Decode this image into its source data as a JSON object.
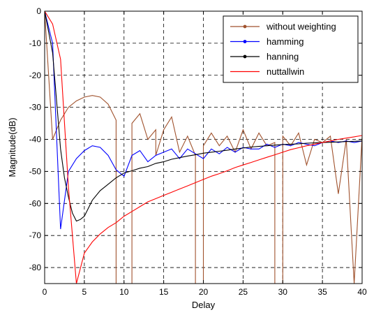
{
  "chart_data": {
    "type": "line",
    "xlabel": "Delay",
    "ylabel": "Magnitude(dB)",
    "xlim": [
      0,
      40
    ],
    "ylim": [
      -85,
      0
    ],
    "xticks": [
      0,
      5,
      10,
      15,
      20,
      25,
      30,
      35,
      40
    ],
    "yticks": [
      0,
      -10,
      -20,
      -30,
      -40,
      -50,
      -60,
      -70,
      -80
    ],
    "grid": true,
    "legend_position": "top-right",
    "series": [
      {
        "name": "without weighting",
        "color": "#a0522d",
        "x": [
          0,
          1,
          2,
          3,
          4,
          5,
          6,
          7,
          8,
          9,
          9,
          10,
          10,
          11,
          11,
          12,
          13,
          14,
          14,
          15,
          16,
          17,
          18,
          19,
          19,
          20,
          20,
          21,
          22,
          23,
          24,
          25,
          26,
          27,
          28,
          29,
          29,
          30,
          30,
          31,
          32,
          33,
          34,
          35,
          36,
          37,
          38,
          39,
          40
        ],
        "y": [
          0,
          -40,
          -34,
          -30,
          -28,
          -26.8,
          -26.3,
          -26.8,
          -29,
          -34,
          -85,
          -85,
          -85,
          -85,
          -35,
          -32,
          -40,
          -37,
          -45,
          -37,
          -33,
          -44,
          -39,
          -45,
          -85,
          -85,
          -42,
          -38,
          -42,
          -39,
          -44,
          -37,
          -43,
          -38,
          -42,
          -41,
          -85,
          -85,
          -39,
          -42,
          -38,
          -48,
          -40,
          -41,
          -39,
          -57,
          -40,
          -85,
          -39
        ]
      },
      {
        "name": "hamming",
        "color": "#0000ff",
        "x": [
          0,
          1,
          2,
          3,
          4,
          5,
          6,
          7,
          8,
          9,
          10,
          11,
          12,
          13,
          14,
          15,
          16,
          17,
          18,
          19,
          20,
          21,
          22,
          23,
          24,
          25,
          26,
          27,
          28,
          29,
          30,
          31,
          32,
          33,
          34,
          35,
          36,
          37,
          38,
          39,
          40
        ],
        "y": [
          0,
          -10,
          -68,
          -50,
          -46,
          -43.5,
          -42,
          -42.5,
          -45,
          -49.5,
          -51.5,
          -45,
          -43.5,
          -47,
          -45,
          -44,
          -43,
          -46,
          -43,
          -44.5,
          -46,
          -43,
          -44.5,
          -42.5,
          -44,
          -42.5,
          -43,
          -43,
          -41.5,
          -42.5,
          -41.5,
          -42,
          -41,
          -41.5,
          -42,
          -41,
          -40.5,
          -41,
          -40.5,
          -41,
          -40.5
        ]
      },
      {
        "name": "hanning",
        "color": "#000000",
        "x": [
          0,
          1,
          1.5,
          2,
          2.5,
          3,
          3.5,
          4,
          4.5,
          5,
          6,
          7,
          8,
          9,
          10,
          11,
          12,
          13,
          14,
          15,
          16,
          17,
          18,
          19,
          20,
          21,
          22,
          23,
          24,
          25,
          26,
          27,
          28,
          29,
          30,
          31,
          32,
          33,
          34,
          35,
          36,
          37,
          38,
          39,
          40
        ],
        "y": [
          0,
          -13,
          -28,
          -43,
          -52,
          -58,
          -63,
          -65.5,
          -65,
          -64,
          -59,
          -56,
          -54,
          -52,
          -50.5,
          -49.8,
          -49,
          -48.5,
          -47.5,
          -47,
          -46.2,
          -45.7,
          -45.2,
          -44.8,
          -44.3,
          -44,
          -43.7,
          -43.4,
          -43,
          -42.7,
          -42.4,
          -42.2,
          -42,
          -41.8,
          -41.6,
          -41.5,
          -41.4,
          -41.2,
          -41.1,
          -41,
          -40.9,
          -40.8,
          -40.7,
          -40.6,
          -40.5
        ]
      },
      {
        "name": "nuttallwin",
        "color": "#ff0000",
        "x": [
          0,
          1,
          2,
          3,
          4,
          5,
          6,
          7,
          8,
          9,
          10,
          11,
          12,
          13,
          14,
          15,
          16,
          17,
          18,
          19,
          20,
          21,
          22,
          23,
          24,
          25,
          26,
          27,
          28,
          29,
          30,
          31,
          32,
          33,
          34,
          35,
          36,
          37,
          38,
          39,
          40
        ],
        "y": [
          0,
          -4,
          -15,
          -55,
          -85,
          -75.5,
          -72,
          -69.5,
          -67.5,
          -66,
          -64,
          -62.5,
          -61,
          -59.5,
          -58.5,
          -57.5,
          -56.5,
          -55.5,
          -54.5,
          -53.5,
          -52.5,
          -51.5,
          -50.7,
          -49.8,
          -48.8,
          -48,
          -47.2,
          -46.4,
          -45.6,
          -44.8,
          -44,
          -43.2,
          -42.6,
          -42,
          -41.5,
          -41,
          -40.5,
          -40,
          -39.6,
          -39.2,
          -38.8
        ]
      }
    ]
  }
}
